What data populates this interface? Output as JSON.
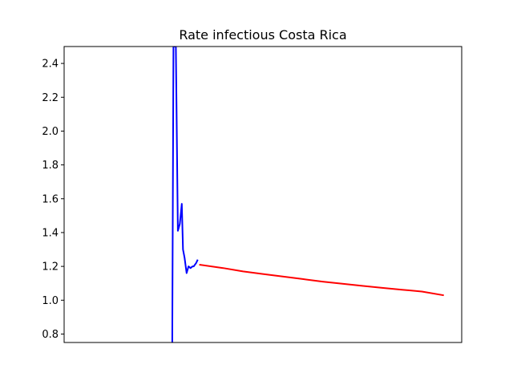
{
  "chart_data": {
    "type": "line",
    "title": "Rate infectious Costa Rica",
    "xlabel": "",
    "ylabel": "",
    "ylim": [
      0.75,
      2.5
    ],
    "xlim": [
      0,
      100
    ],
    "x_ticks_shown": false,
    "grid": false,
    "y_ticks": [
      0.8,
      1.0,
      1.2,
      1.4,
      1.6,
      1.8,
      2.0,
      2.2,
      2.4
    ],
    "y_tick_labels": [
      "0.8",
      "1.0",
      "1.2",
      "1.4",
      "1.6",
      "1.8",
      "2.0",
      "2.2",
      "2.4"
    ],
    "series": [
      {
        "color": "#0000ff",
        "x": [
          27.2,
          27.5,
          28.1,
          28.6,
          29.1,
          29.6,
          29.9,
          30.3,
          30.8,
          31.3,
          31.8,
          32.3,
          32.6,
          33.2,
          33.6
        ],
        "y": [
          0.75,
          2.5,
          2.5,
          1.41,
          1.45,
          1.57,
          1.3,
          1.25,
          1.16,
          1.2,
          1.19,
          1.2,
          1.2,
          1.22,
          1.24
        ]
      },
      {
        "color": "#ff0000",
        "x": [
          34.0,
          40,
          45,
          50,
          55,
          60,
          65,
          70,
          75,
          80,
          85,
          90,
          95.5
        ],
        "y": [
          1.21,
          1.19,
          1.17,
          1.155,
          1.14,
          1.125,
          1.11,
          1.097,
          1.085,
          1.073,
          1.062,
          1.051,
          1.029
        ]
      }
    ]
  }
}
